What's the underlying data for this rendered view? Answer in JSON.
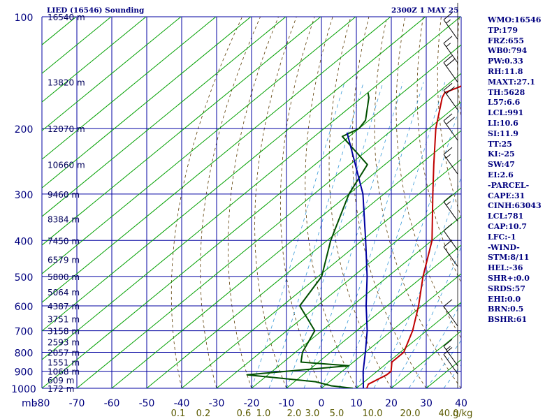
{
  "header": {
    "title": "LIED (16546) Sounding",
    "valid_time": "2300Z  1 MAY 25"
  },
  "indices": [
    "WMO:16546",
    "TP:179",
    "FRZ:655",
    "WB0:794",
    "PW:0.33",
    "RH:11.8",
    "MAXT:27.1",
    "TH:5628",
    "L57:6.6",
    "LCL:991",
    "LI:10.6",
    "SI:11.9",
    "TT:25",
    "KI:-25",
    "SW:47",
    "EI:2.6",
    "-PARCEL-",
    "CAPE:31",
    "CINH:63043",
    "LCL:781",
    "CAP:10.7",
    "LFC:-1",
    "-WIND-",
    "STM:8/11",
    "HEL:-36",
    "SHR+:0.0",
    "SRDS:57",
    "EHI:0.0",
    "BRN:0.5",
    "BSHR:61"
  ],
  "colors": {
    "background": "#ffffff",
    "grid": "#0000a0",
    "isotherm_skewed": "#00a000",
    "dry_adiabat": "#5a3a00",
    "moist_adiabat": "#3a9ad8",
    "mixing_ratio": "#00a000",
    "temperature": "#c00000",
    "dewpoint": "#005000",
    "parcel": "#0000a0",
    "text": "#00007f",
    "mixing_ratio_labels": "#5a5a00"
  },
  "chart_data": {
    "type": "line",
    "diagram": "skew-T log-p",
    "xlabel": "",
    "ylabel": "mb",
    "y_log_scale": true,
    "ylim": [
      1000,
      100
    ],
    "xlim": [
      -80,
      40
    ],
    "pressure_ticks": [
      100,
      200,
      300,
      400,
      500,
      600,
      700,
      800,
      900,
      1000
    ],
    "temperature_ticks": [
      "-80",
      "-70",
      "-60",
      "-50",
      "-40",
      "-30",
      "-20",
      "-10",
      "0",
      "10",
      "20",
      "30",
      "40"
    ],
    "mixing_ratio_label": "g/kg",
    "mixing_ratio_ticks": [
      "0.1",
      "0.2",
      "0.6",
      "1.0",
      "2.0",
      "3.0",
      "5.0",
      "10.0",
      "20.0",
      "40.0"
    ],
    "height_labels": [
      {
        "p": 100,
        "label": "16540 m"
      },
      {
        "p": 150,
        "label": "13820 m"
      },
      {
        "p": 200,
        "label": "12070 m"
      },
      {
        "p": 250,
        "label": "10660 m"
      },
      {
        "p": 300,
        "label": "9460 m"
      },
      {
        "p": 350,
        "label": "8384 m"
      },
      {
        "p": 400,
        "label": "7450 m"
      },
      {
        "p": 450,
        "label": "6579 m"
      },
      {
        "p": 500,
        "label": "5800 m"
      },
      {
        "p": 550,
        "label": "5064 m"
      },
      {
        "p": 600,
        "label": "4387 m"
      },
      {
        "p": 650,
        "label": "3751 m"
      },
      {
        "p": 700,
        "label": "3158 m"
      },
      {
        "p": 750,
        "label": "2593 m"
      },
      {
        "p": 800,
        "label": "2057 m"
      },
      {
        "p": 850,
        "label": "1551 m"
      },
      {
        "p": 900,
        "label": "1068 m"
      },
      {
        "p": 950,
        "label": "609 m"
      },
      {
        "p": 1000,
        "label": "172 m"
      }
    ],
    "series": [
      {
        "points": [
          {
            "p": 100,
            "t": -60
          },
          {
            "p": 117,
            "t": -61
          },
          {
            "p": 120,
            "t": -60
          },
          {
            "p": 122,
            "t": -64
          },
          {
            "p": 140,
            "t": -61
          },
          {
            "p": 142,
            "t": -62
          },
          {
            "p": 155,
            "t": -66
          },
          {
            "p": 160,
            "t": -68
          },
          {
            "p": 165,
            "t": -67
          },
          {
            "p": 200,
            "t": -58
          },
          {
            "p": 250,
            "t": -46
          },
          {
            "p": 300,
            "t": -36
          },
          {
            "p": 400,
            "t": -20
          },
          {
            "p": 500,
            "t": -10
          },
          {
            "p": 600,
            "t": -1
          },
          {
            "p": 700,
            "t": 6
          },
          {
            "p": 800,
            "t": 11
          },
          {
            "p": 850,
            "t": 11
          },
          {
            "p": 900,
            "t": 14
          },
          {
            "p": 920,
            "t": 14
          },
          {
            "p": 975,
            "t": 12
          },
          {
            "p": 1000,
            "t": 13
          }
        ]
      },
      {
        "points": [
          {
            "p": 160,
            "t": -90
          },
          {
            "p": 165,
            "t": -88
          },
          {
            "p": 190,
            "t": -81
          },
          {
            "p": 200,
            "t": -80
          },
          {
            "p": 210,
            "t": -82
          },
          {
            "p": 250,
            "t": -65
          },
          {
            "p": 300,
            "t": -60
          },
          {
            "p": 400,
            "t": -49
          },
          {
            "p": 500,
            "t": -39
          },
          {
            "p": 600,
            "t": -35
          },
          {
            "p": 700,
            "t": -22
          },
          {
            "p": 800,
            "t": -18
          },
          {
            "p": 850,
            "t": -15
          },
          {
            "p": 870,
            "t": 0
          },
          {
            "p": 920,
            "t": -26
          },
          {
            "p": 960,
            "t": -4
          },
          {
            "p": 985,
            "t": 2
          },
          {
            "p": 1000,
            "t": 9
          }
        ]
      },
      {
        "points": [
          {
            "p": 205,
            "t": -82
          },
          {
            "p": 300,
            "t": -56
          },
          {
            "p": 400,
            "t": -39
          },
          {
            "p": 500,
            "t": -26
          },
          {
            "p": 600,
            "t": -16
          },
          {
            "p": 700,
            "t": -7
          },
          {
            "p": 800,
            "t": 0
          },
          {
            "p": 900,
            "t": 6
          },
          {
            "p": 1000,
            "t": 12
          }
        ]
      }
    ],
    "wind_barbs": [
      {
        "p": 115,
        "speed_kt": 15
      },
      {
        "p": 133,
        "speed_kt": 15
      },
      {
        "p": 150,
        "speed_kt": 20
      },
      {
        "p": 178,
        "speed_kt": 20
      },
      {
        "p": 215,
        "speed_kt": 20
      },
      {
        "p": 265,
        "speed_kt": 15
      },
      {
        "p": 355,
        "speed_kt": 15
      },
      {
        "p": 425,
        "speed_kt": 10
      },
      {
        "p": 470,
        "speed_kt": 10
      },
      {
        "p": 680,
        "speed_kt": 10
      },
      {
        "p": 870,
        "speed_kt": 15
      },
      {
        "p": 915,
        "speed_kt": 10
      }
    ]
  }
}
